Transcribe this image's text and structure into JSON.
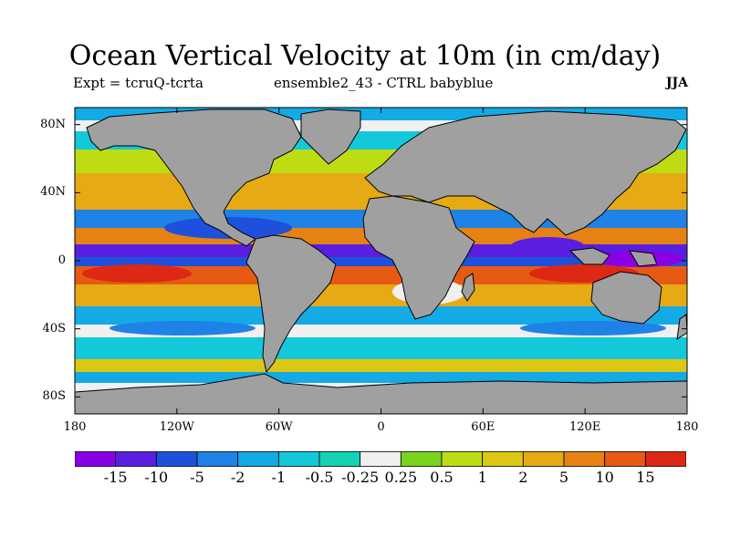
{
  "title": "Ocean Vertical Velocity at 10m (in cm/day)",
  "expt_label": "Expt = tcruQ-tcrta",
  "ensemble_label": "ensemble2_43 - CTRL babyblue",
  "season": "JJA",
  "map": {
    "projection": "cylindrical equidistant",
    "lon_range": [
      -180,
      180
    ],
    "lat_range": [
      -90,
      90
    ],
    "land_color": "#a0a0a0",
    "coastline_color": "#000000"
  },
  "y_ticks": [
    {
      "lat": 80,
      "label": "80N"
    },
    {
      "lat": 40,
      "label": "40N"
    },
    {
      "lat": 0,
      "label": "0"
    },
    {
      "lat": -40,
      "label": "40S"
    },
    {
      "lat": -80,
      "label": "80S"
    }
  ],
  "x_ticks": [
    {
      "lon": -180,
      "label": "180"
    },
    {
      "lon": -120,
      "label": "120W"
    },
    {
      "lon": -60,
      "label": "60W"
    },
    {
      "lon": 0,
      "label": "0"
    },
    {
      "lon": 60,
      "label": "60E"
    },
    {
      "lon": 120,
      "label": "120E"
    },
    {
      "lon": 180,
      "label": "180"
    }
  ],
  "colorbar": {
    "labels": [
      "-15",
      "-10",
      "-5",
      "-2",
      "-1",
      "-0.5",
      "-0.25",
      "0.25",
      "0.5",
      "1",
      "2",
      "5",
      "10",
      "15"
    ],
    "colors": [
      "#8a00e6",
      "#5a1ee0",
      "#1e50dc",
      "#1e82e6",
      "#14aae6",
      "#14c8dc",
      "#14d2b4",
      "#f0f0f0",
      "#78d21e",
      "#bedc14",
      "#dcc814",
      "#e6aa14",
      "#e68214",
      "#e65a14",
      "#dc2814"
    ]
  }
}
